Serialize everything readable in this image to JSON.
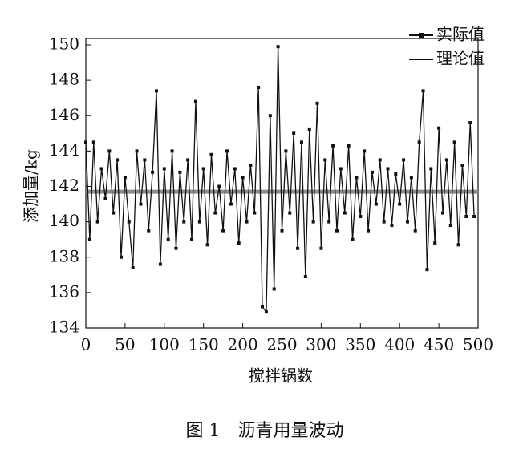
{
  "chart_data": {
    "type": "line",
    "caption": "图 1　沥青用量波动",
    "xlabel": "搅拌锅数",
    "ylabel": "添加量/kg",
    "xlim": [
      0,
      500
    ],
    "xticks": [
      0,
      50,
      100,
      150,
      200,
      250,
      300,
      350,
      400,
      450,
      500
    ],
    "ylim": [
      134,
      150
    ],
    "yticks": [
      134,
      136,
      138,
      140,
      142,
      144,
      146,
      148,
      150
    ],
    "legend": "top-right",
    "series": [
      {
        "name": "实际值",
        "color": "#111111",
        "marker": "square",
        "x": [
          0,
          5,
          10,
          15,
          20,
          25,
          30,
          35,
          40,
          45,
          50,
          55,
          60,
          65,
          70,
          75,
          80,
          85,
          90,
          95,
          100,
          105,
          110,
          115,
          120,
          125,
          130,
          135,
          140,
          145,
          150,
          155,
          160,
          165,
          170,
          175,
          180,
          185,
          190,
          195,
          200,
          205,
          210,
          215,
          220,
          225,
          230,
          235,
          240,
          245,
          250,
          255,
          260,
          265,
          270,
          275,
          280,
          285,
          290,
          295,
          300,
          305,
          310,
          315,
          320,
          325,
          330,
          335,
          340,
          345,
          350,
          355,
          360,
          365,
          370,
          375,
          380,
          385,
          390,
          395,
          400,
          405,
          410,
          415,
          420,
          425,
          430,
          435,
          440,
          445,
          450,
          455,
          460,
          465,
          470,
          475,
          480,
          485,
          490,
          495
        ],
        "values": [
          144.5,
          139,
          144.5,
          140,
          143,
          141.3,
          144,
          140.5,
          143.5,
          138,
          142.5,
          140,
          137.4,
          144,
          141,
          143.5,
          139.5,
          142.8,
          147.4,
          137.6,
          143,
          139,
          144,
          138.5,
          142.8,
          140,
          143.5,
          139,
          146.8,
          140,
          143,
          138.7,
          143.8,
          140.5,
          142,
          139.5,
          144,
          141,
          143,
          138.8,
          142.5,
          140,
          143.2,
          140.5,
          147.6,
          135.2,
          134.9,
          146,
          136.2,
          149.9,
          139.5,
          144,
          140.5,
          145,
          138.5,
          144.5,
          136.9,
          145.2,
          140,
          146.7,
          138.5,
          143.5,
          140,
          144.3,
          139.5,
          143,
          140.5,
          144.3,
          139,
          142.5,
          140.3,
          144,
          139.5,
          142.8,
          141,
          143.5,
          140,
          143,
          139.8,
          142.7,
          141,
          143.5,
          140,
          142.5,
          139.5,
          144.5,
          147.4,
          137.3,
          143,
          138.8,
          145.3,
          140.5,
          143.5,
          139.8,
          144.5,
          138.7,
          143.2,
          140.3,
          145.6,
          140.3
        ]
      },
      {
        "name": "理论值",
        "color": "#8c8c8c",
        "x": [
          0,
          500
        ],
        "values": [
          141.7,
          141.7
        ]
      }
    ]
  }
}
